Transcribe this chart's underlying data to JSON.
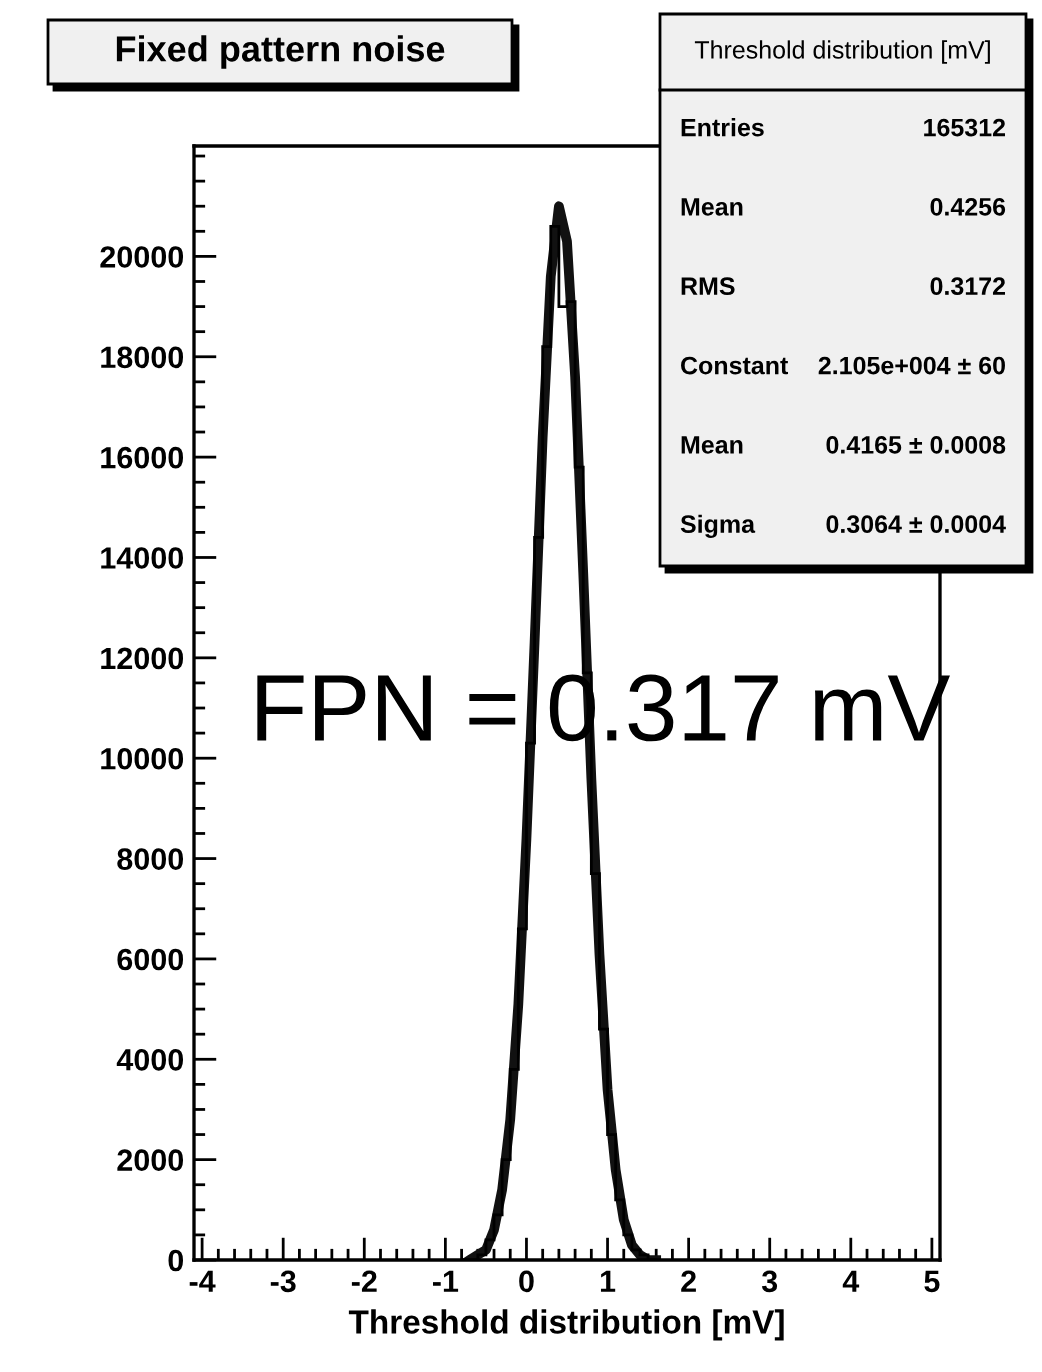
{
  "chart_data": {
    "type": "histogram",
    "title": "Fixed pattern noise",
    "xlabel": "Threshold distribution [mV]",
    "xlim": [
      -4.1,
      5.1
    ],
    "xticks": [
      -4,
      -3,
      -2,
      -1,
      0,
      1,
      2,
      3,
      4,
      5
    ],
    "ylim": [
      0,
      22200
    ],
    "yticks": [
      0,
      2000,
      4000,
      6000,
      8000,
      10000,
      12000,
      14000,
      16000,
      18000,
      20000
    ],
    "grid": false,
    "legend": false,
    "color": "#000000",
    "bins": [
      -0.8,
      -0.7,
      -0.6,
      -0.5,
      -0.4,
      -0.3,
      -0.2,
      -0.1,
      0.0,
      0.1,
      0.2,
      0.3,
      0.4,
      0.5,
      0.6,
      0.7,
      0.8,
      0.9,
      1.0,
      1.1,
      1.2,
      1.3,
      1.4,
      1.5,
      1.6
    ],
    "values": [
      0,
      0,
      100,
      400,
      900,
      2000,
      3800,
      6600,
      10300,
      14400,
      18200,
      20600,
      19000,
      19100,
      15800,
      11700,
      7700,
      4600,
      2500,
      1200,
      500,
      200,
      100,
      0
    ],
    "series": [
      {
        "type": "line",
        "color": "#111111",
        "x": [
          -0.7,
          -0.6,
          -0.5,
          -0.4,
          -0.3,
          -0.2,
          -0.1,
          0.0,
          0.1,
          0.2,
          0.3,
          0.4,
          0.5,
          0.6,
          0.7,
          0.8,
          0.9,
          1.0,
          1.1,
          1.2,
          1.3,
          1.4,
          1.5,
          1.6
        ],
        "values": [
          0,
          100,
          200,
          600,
          1400,
          2800,
          5100,
          8400,
          12300,
          16400,
          19600,
          21000,
          20300,
          17600,
          13700,
          9600,
          6100,
          3400,
          1800,
          800,
          300,
          100,
          0,
          0
        ]
      }
    ],
    "annotations": [
      "Threshold distribution [mV]",
      "Entries",
      "165312",
      "Mean",
      "0.4256",
      "RMS",
      "0.3172",
      "Constant",
      "2.105e+004 ± 60",
      "Mean",
      "0.4165 ± 0.0008",
      "Sigma",
      "0.3064 ± 0.0004",
      "FPN = 0.317 mV"
    ]
  }
}
